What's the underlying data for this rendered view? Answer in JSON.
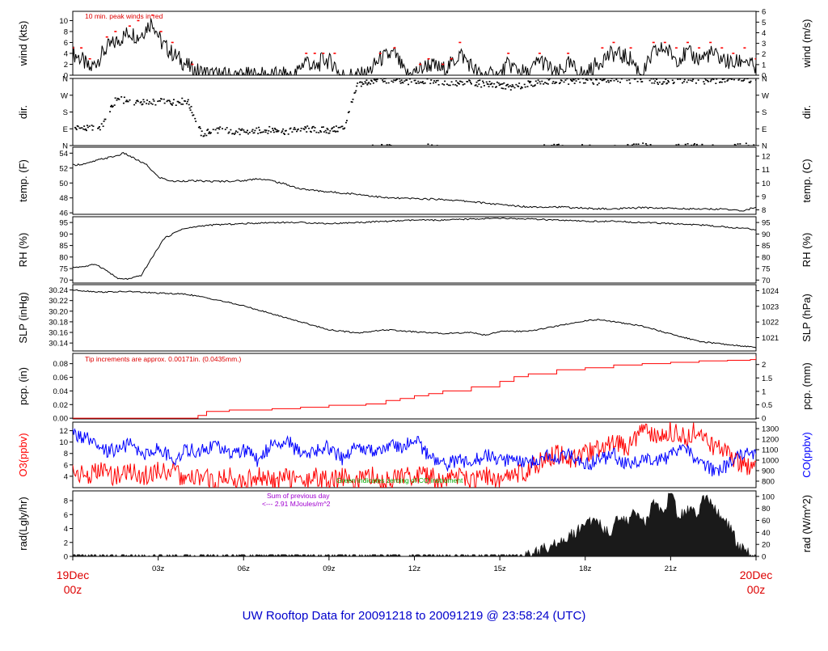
{
  "figure": {
    "title": "UW Rooftop Data for 20091218  to  20091219 @ 23:58:24  (UTC)",
    "title_color": "#0000cc",
    "start_label": [
      "19Dec",
      "00z"
    ],
    "end_label": [
      "20Dec",
      "00z"
    ],
    "edge_label_color": "#dd0000",
    "x_ticks": [
      "03z",
      "06z",
      "09z",
      "12z",
      "15z",
      "18z",
      "21z"
    ]
  },
  "chart_data": [
    {
      "name": "wind",
      "type": "line",
      "xlabel": "",
      "ylabel_left": "wind (kts)",
      "ylabel_right": "wind (m/s)",
      "ylim": [
        0,
        11.7
      ],
      "yticks_left": [
        0,
        2,
        4,
        6,
        8,
        10
      ],
      "yticks_right": [
        0,
        1,
        2,
        3,
        4,
        5,
        6
      ],
      "right_scale": 0.5144,
      "annotation": "10 min. peak winds in red",
      "x_hours": [
        0,
        0.3,
        0.6,
        1.2,
        1.5,
        2.0,
        2.3,
        2.8,
        3.1,
        3.5,
        4.2,
        5.0,
        6.5,
        7.8,
        8.2,
        8.5,
        8.8,
        9.2,
        9.4,
        10.3,
        10.8,
        11.3,
        11.7,
        12.2,
        12.5,
        13.0,
        13.3,
        13.6,
        14.3,
        15.0,
        15.3,
        16.0,
        16.4,
        17.0,
        17.4,
        18.0,
        18.6,
        19.0,
        19.6,
        20.0,
        20.4,
        20.8,
        21.2,
        21.6,
        22.0,
        22.4,
        22.8,
        23.2,
        23.6,
        24.0
      ],
      "series": [
        {
          "values": [
            4,
            3,
            1,
            5,
            6,
            8,
            7,
            10,
            6,
            4,
            1,
            0,
            0,
            0,
            3,
            1,
            3,
            2,
            0,
            0,
            3,
            4,
            0,
            1,
            2,
            1,
            2,
            4,
            0,
            0,
            2,
            0,
            3,
            0,
            2,
            0,
            3,
            4,
            3,
            0,
            4,
            5,
            3,
            4,
            3,
            4,
            3,
            2,
            3,
            1
          ],
          "color": "#000000"
        },
        {
          "values": [
            5,
            5,
            3,
            7,
            8,
            9,
            10,
            11,
            8,
            6,
            2,
            0,
            0,
            0,
            4,
            4,
            4,
            4,
            0,
            0,
            4,
            5,
            0,
            2,
            3,
            2,
            3,
            6,
            0,
            0,
            4,
            0,
            4,
            0,
            4,
            0,
            5,
            6,
            5,
            0,
            6,
            6,
            5,
            6,
            5,
            6,
            5,
            4,
            5,
            3
          ],
          "color": "#ff0000",
          "style": "points"
        }
      ]
    },
    {
      "name": "dir",
      "type": "scatter",
      "xlabel": "",
      "ylabel_left": "dir.",
      "ylabel_right": "dir.",
      "ylim": [
        0,
        360
      ],
      "yticks_left": [
        "N",
        "E",
        "S",
        "W",
        "N"
      ],
      "yticks_right": [
        "N",
        "E",
        "S",
        "W",
        "N"
      ],
      "x_hours": [
        0,
        0.5,
        1.0,
        1.5,
        2.0,
        2.5,
        3.0,
        3.5,
        4.0,
        4.5,
        5.0,
        5.5,
        6.0,
        6.5,
        7.0,
        7.5,
        8.0,
        8.5,
        9.0,
        9.5,
        10.0,
        10.5,
        11.0,
        11.5,
        12.0,
        12.5,
        13.0,
        13.5,
        14.0,
        14.5,
        15.0,
        15.5,
        16.0,
        16.5,
        17.0,
        17.5,
        18.0,
        18.5,
        19.0,
        19.5,
        20.0,
        20.5,
        21.0,
        21.5,
        22.0,
        22.5,
        23.0,
        23.5
      ],
      "series": [
        {
          "values": [
            95,
            90,
            100,
            250,
            235,
            230,
            235,
            232,
            240,
            60,
            85,
            80,
            70,
            80,
            85,
            75,
            90,
            85,
            80,
            95,
            330,
            345,
            350,
            340,
            345,
            350,
            340,
            330,
            335,
            330,
            320,
            310,
            330,
            345,
            350,
            345,
            350,
            340,
            345,
            350,
            355,
            345,
            350,
            355,
            350,
            345,
            350,
            355
          ],
          "color": "#000000"
        }
      ]
    },
    {
      "name": "temp",
      "type": "line",
      "xlabel": "",
      "ylabel_left": "temp. (F)",
      "ylabel_right": "temp. (C)",
      "ylim": [
        45.8,
        54.8
      ],
      "yticks_left": [
        46,
        48,
        50,
        52,
        54
      ],
      "yticks_right": [
        8,
        9,
        10,
        11,
        12
      ],
      "x_hours": [
        0,
        0.5,
        1.0,
        1.5,
        1.8,
        2.2,
        2.6,
        3.0,
        3.5,
        4.0,
        5.0,
        6.0,
        6.5,
        7.0,
        7.5,
        8.0,
        8.5,
        9.0,
        10.0,
        11.0,
        12.0,
        13.0,
        14.0,
        15.0,
        16.0,
        17.0,
        18.0,
        19.0,
        20.0,
        21.0,
        22.0,
        23.0,
        23.5,
        24.0
      ],
      "series": [
        {
          "values": [
            52.4,
            52.6,
            53.2,
            53.6,
            54.0,
            53.2,
            52.4,
            50.8,
            50.2,
            50.3,
            50.2,
            50.3,
            50.6,
            50.3,
            49.8,
            49.2,
            49.0,
            48.8,
            48.5,
            48.0,
            47.9,
            47.8,
            47.5,
            47.1,
            46.8,
            46.8,
            46.6,
            46.5,
            46.7,
            46.6,
            46.5,
            46.5,
            46.2,
            46.8
          ],
          "color": "#000000"
        }
      ]
    },
    {
      "name": "rh",
      "type": "line",
      "xlabel": "",
      "ylabel_left": "RH (%)",
      "ylabel_right": "RH (%)",
      "ylim": [
        68.7,
        97.5
      ],
      "yticks_left": [
        70,
        75,
        80,
        85,
        90,
        95
      ],
      "yticks_right": [
        70,
        75,
        80,
        85,
        90,
        95
      ],
      "x_hours": [
        0,
        0.5,
        0.8,
        1.2,
        1.6,
        2.0,
        2.4,
        2.8,
        3.2,
        3.8,
        4.5,
        5.0,
        6.0,
        7.0,
        8.0,
        9.0,
        10.0,
        11.0,
        12.0,
        13.0,
        14.0,
        15.0,
        16.0,
        17.0,
        18.0,
        19.0,
        20.0,
        21.0,
        22.0,
        23.0,
        24.0
      ],
      "series": [
        {
          "values": [
            75.5,
            76.0,
            77.0,
            74.0,
            70.5,
            70.5,
            72.0,
            80.0,
            88.0,
            92.0,
            93.5,
            94.0,
            94.5,
            95.0,
            95.0,
            94.5,
            95.0,
            95.5,
            96.0,
            96.0,
            96.5,
            96.8,
            96.5,
            96.0,
            95.5,
            95.5,
            95.0,
            94.5,
            94.0,
            93.0,
            92.0
          ],
          "color": "#000000"
        }
      ]
    },
    {
      "name": "slp",
      "type": "line",
      "xlabel": "",
      "ylabel_left": "SLP (inHg)",
      "ylabel_right": "SLP (hPa)",
      "ylim": [
        30.125,
        30.25
      ],
      "yticks_left": [
        "30.14",
        "30.16",
        "30.18",
        "30.20",
        "30.22",
        "30.24"
      ],
      "yticks_right": [
        1021,
        1022,
        1023,
        1024
      ],
      "x_hours": [
        0,
        1.0,
        2.0,
        3.0,
        4.0,
        5.0,
        6.0,
        7.0,
        8.0,
        9.0,
        10.0,
        11.0,
        12.0,
        13.0,
        14.0,
        14.5,
        15.0,
        16.0,
        17.0,
        18.0,
        18.5,
        19.0,
        20.0,
        21.0,
        22.0,
        23.0,
        24.0
      ],
      "series": [
        {
          "values": [
            30.24,
            30.236,
            30.237,
            30.234,
            30.232,
            30.222,
            30.21,
            30.195,
            30.18,
            30.165,
            30.159,
            30.165,
            30.161,
            30.158,
            30.16,
            30.155,
            30.162,
            30.162,
            30.172,
            30.182,
            30.184,
            30.18,
            30.172,
            30.157,
            30.143,
            30.137,
            30.132
          ],
          "color": "#000000"
        }
      ]
    },
    {
      "name": "pcp",
      "type": "line",
      "xlabel": "",
      "ylabel_left": "pcp. (in)",
      "ylabel_right": "pcp. (mm)",
      "ylim": [
        -0.001,
        0.095
      ],
      "yticks_left": [
        "0.00",
        "0.02",
        "0.04",
        "0.06",
        "0.08"
      ],
      "yticks_right": [
        "0",
        "0.5",
        "1",
        "1.5",
        "2"
      ],
      "right_scale": 25.4,
      "annotation": "Tip increments are approx. 0.00171in. (0.0435mm.)",
      "x_hours": [
        0,
        4.2,
        4.4,
        4.7,
        5.5,
        7.0,
        8.0,
        9.0,
        10.3,
        11.0,
        11.5,
        12.0,
        12.5,
        13.0,
        14.0,
        15.0,
        15.5,
        16.0,
        17.0,
        18.0,
        19.0,
        20.0,
        21.0,
        22.0,
        23.0,
        23.8,
        24.0
      ],
      "series": [
        {
          "values": [
            0.0,
            0.0,
            0.004,
            0.01,
            0.012,
            0.014,
            0.016,
            0.019,
            0.021,
            0.026,
            0.029,
            0.033,
            0.036,
            0.04,
            0.046,
            0.054,
            0.061,
            0.065,
            0.071,
            0.074,
            0.078,
            0.08,
            0.082,
            0.084,
            0.085,
            0.086,
            0.091
          ],
          "color": "#ff0000"
        }
      ]
    },
    {
      "name": "o3co",
      "type": "line",
      "xlabel": "",
      "ylabel_left": "O3(ppbv)",
      "ylabel_right": "CO(ppbv)",
      "ylim": [
        2,
        13.5
      ],
      "yticks_left": [
        4,
        6,
        8,
        10,
        12
      ],
      "yticks_right": [
        800,
        900,
        1000,
        1100,
        1200,
        1300
      ],
      "annotation": "Green indicates zeroing of CO instrument",
      "x_hours": [
        0,
        0.5,
        1.0,
        1.5,
        2.0,
        2.5,
        3.0,
        3.5,
        4.0,
        4.5,
        5.0,
        5.5,
        6.0,
        6.5,
        7.0,
        7.5,
        8.0,
        8.5,
        9.0,
        9.5,
        10.0,
        10.5,
        11.0,
        11.5,
        12.0,
        12.5,
        13.0,
        13.5,
        14.0,
        14.5,
        15.0,
        15.5,
        16.0,
        16.5,
        17.0,
        17.5,
        18.0,
        18.5,
        19.0,
        19.5,
        20.0,
        20.5,
        21.0,
        21.5,
        22.0,
        22.5,
        23.0,
        23.5
      ],
      "series": [
        {
          "values": [
            5,
            4,
            5,
            4,
            5,
            4,
            5,
            5,
            3,
            4,
            3,
            4,
            3,
            4,
            3,
            4,
            3,
            4,
            3,
            4,
            3,
            4,
            3,
            4,
            4,
            4,
            3,
            4,
            3,
            4,
            3,
            4,
            5,
            7,
            8,
            7,
            8,
            9,
            10,
            9,
            12,
            11,
            12,
            11,
            12,
            9,
            8,
            6
          ],
          "color": "#ff0000"
        },
        {
          "values": [
            1250,
            1200,
            1080,
            1100,
            1150,
            1050,
            1120,
            1000,
            1100,
            1080,
            1150,
            1050,
            1100,
            1000,
            1150,
            1200,
            1050,
            1100,
            1120,
            1000,
            1150,
            1080,
            1150,
            1100,
            1200,
            1050,
            950,
            1000,
            980,
            1050,
            1000,
            1020,
            950,
            1050,
            1000,
            1050,
            950,
            1000,
            1050,
            950,
            1000,
            980,
            1050,
            1100,
            1000,
            900,
            950,
            1050
          ],
          "color": "#0000ff"
        }
      ]
    },
    {
      "name": "rad",
      "type": "area",
      "xlabel": "",
      "ylabel_left": "rad(Lgly/hr)",
      "ylabel_right": "rad (W/m^2)",
      "ylim": [
        0,
        9.4
      ],
      "yticks_left": [
        0,
        2,
        4,
        6,
        8
      ],
      "yticks_right": [
        0,
        20,
        40,
        60,
        80,
        100
      ],
      "right_scale": 11.622,
      "annotation_lines": [
        "Sum of previous day",
        "<--- 2.91 MJoules/m^2"
      ],
      "annotation_color": "#a000d0",
      "x_hours": [
        0,
        0.3,
        0.6,
        8.0,
        10.0,
        12.0,
        14.0,
        15.5,
        16.0,
        16.5,
        17.0,
        17.5,
        18.0,
        18.3,
        18.6,
        18.9,
        19.2,
        19.5,
        19.8,
        20.1,
        20.4,
        20.7,
        21.0,
        21.3,
        21.6,
        21.9,
        22.2,
        22.5,
        22.8,
        23.1,
        23.4,
        23.7,
        24.0
      ],
      "series": [
        {
          "values": [
            0.6,
            0.2,
            0.0,
            0.2,
            0.2,
            0.2,
            0.2,
            0.1,
            0.3,
            1.0,
            2.0,
            3.0,
            4.5,
            5.5,
            4.0,
            3.5,
            6.0,
            5.0,
            6.5,
            4.5,
            8.0,
            6.0,
            9.0,
            5.5,
            7.0,
            6.0,
            8.5,
            7.5,
            5.5,
            4.0,
            1.5,
            0.5,
            0.2
          ],
          "color": "#1a1a1a"
        }
      ]
    }
  ]
}
